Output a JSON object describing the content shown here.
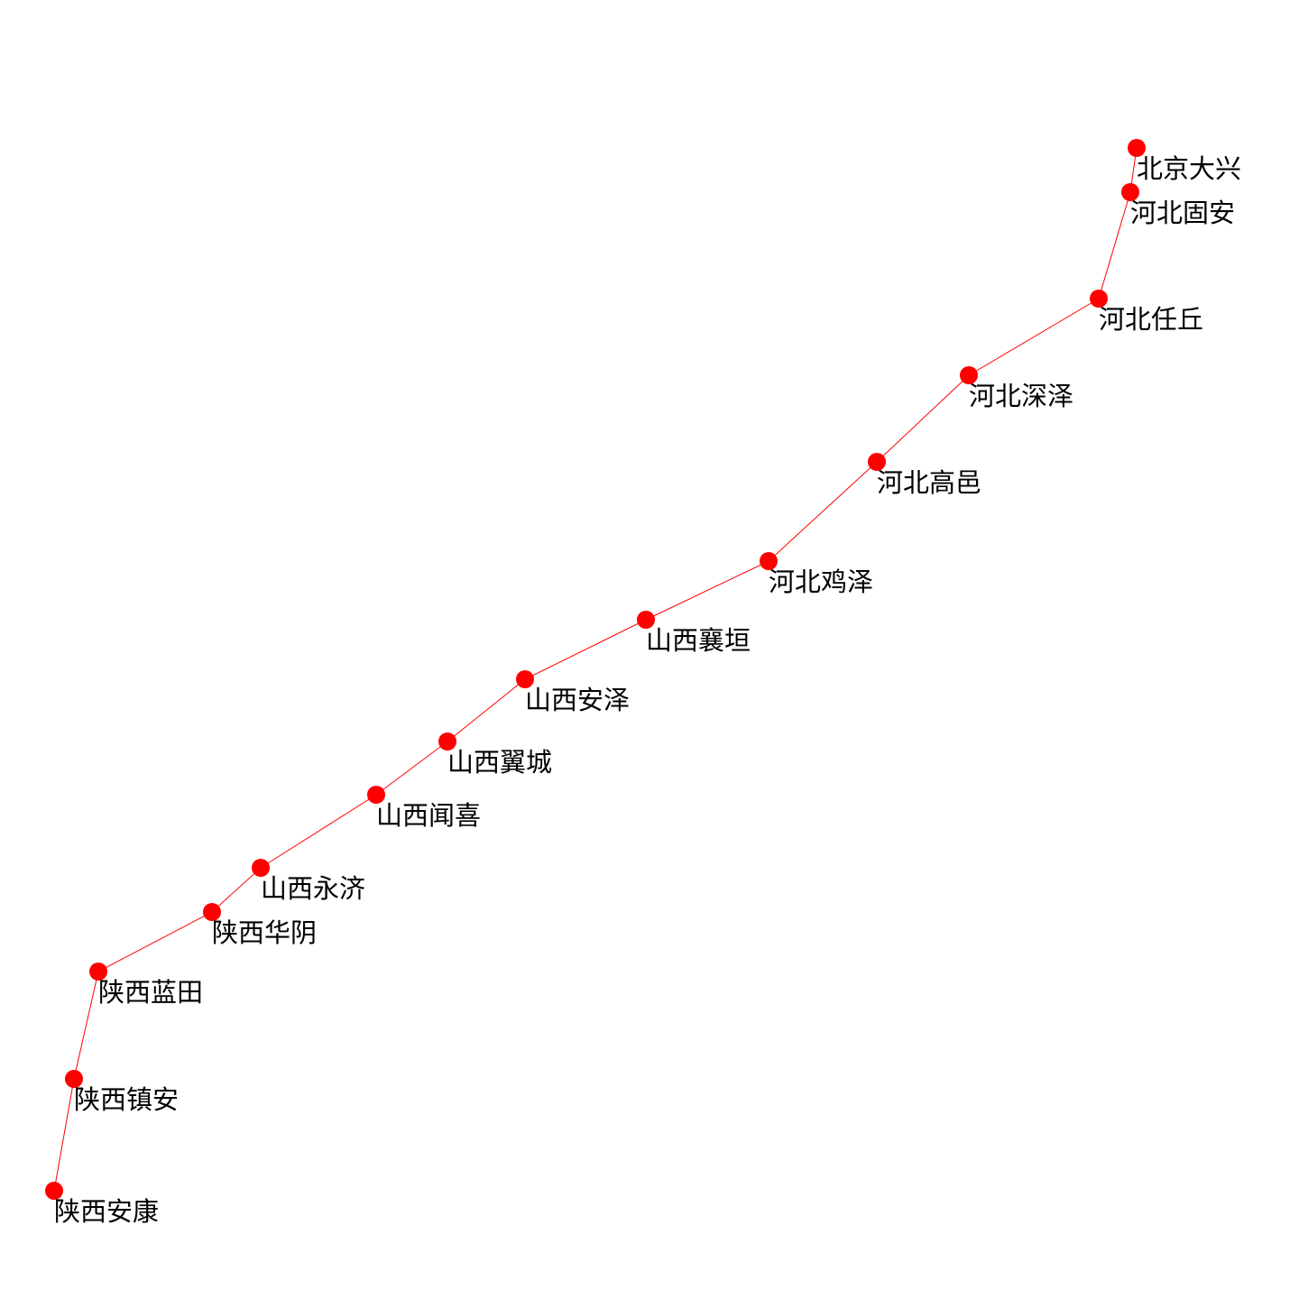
{
  "diagram": {
    "line_color": "#ff0000",
    "node_color": "#ff0000",
    "label_color": "#000000",
    "stations": [
      {
        "name": "北京大兴"
      },
      {
        "name": "河北固安"
      },
      {
        "name": "河北任丘"
      },
      {
        "name": "河北深泽"
      },
      {
        "name": "河北高邑"
      },
      {
        "name": "河北鸡泽"
      },
      {
        "name": "山西襄垣"
      },
      {
        "name": "山西安泽"
      },
      {
        "name": "山西翼城"
      },
      {
        "name": "山西闻喜"
      },
      {
        "name": "山西永济"
      },
      {
        "name": "陕西华阴"
      },
      {
        "name": "陕西蓝田"
      },
      {
        "name": "陕西镇安"
      },
      {
        "name": "陕西安康"
      }
    ]
  }
}
